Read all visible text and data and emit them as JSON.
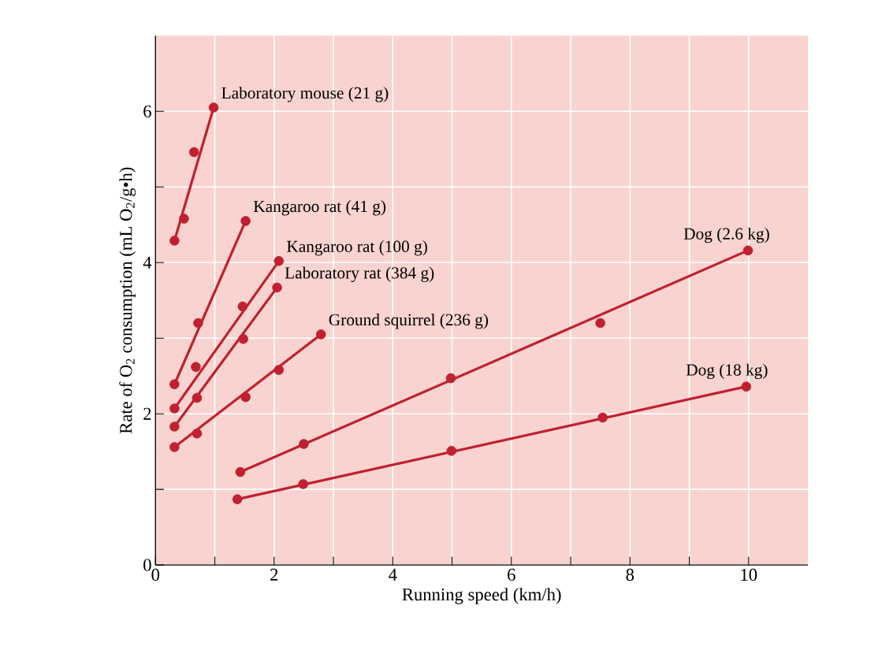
{
  "chart_data": {
    "type": "scatter",
    "xlabel": "Running speed (km/h)",
    "ylabel": "Rate of O$_{2}$ consumption (mL O$_{2}$/g•h)",
    "xlim": [
      0,
      11
    ],
    "ylim": [
      0,
      7
    ],
    "xticks": [
      0,
      {
        "value": 1,
        "label": null
      },
      2,
      {
        "value": 3,
        "label": null
      },
      4,
      {
        "value": 5,
        "label": null
      },
      6,
      {
        "value": 7,
        "label": null
      },
      8,
      {
        "value": 9,
        "label": null
      },
      10
    ],
    "yticks": [
      0,
      {
        "value": 1,
        "label": null
      },
      2,
      {
        "value": 3,
        "label": null
      },
      4,
      {
        "value": 5,
        "label": null
      },
      6
    ],
    "grid": true,
    "marker": "circle",
    "series": [
      {
        "name": "Laboratory mouse (21 g)",
        "color": "#c0202f",
        "x": [
          0.32,
          0.48,
          0.65,
          0.98
        ],
        "values": [
          4.29,
          4.58,
          5.46,
          6.05
        ]
      },
      {
        "type": "line",
        "color": "#c0202f",
        "line_style": "solid",
        "marker": "none",
        "x": [
          0.32,
          0.98
        ],
        "values": [
          4.29,
          6.05
        ]
      },
      {
        "name": "Kangaroo rat (41 g)",
        "color": "#c0202f",
        "x": [
          0.32,
          0.72,
          1.52
        ],
        "values": [
          2.39,
          3.2,
          4.55
        ]
      },
      {
        "type": "line",
        "color": "#c0202f",
        "line_style": "solid",
        "marker": "none",
        "x": [
          0.32,
          1.52
        ],
        "values": [
          2.39,
          4.55
        ]
      },
      {
        "name": "Kangaroo rat (100 g)",
        "color": "#c0202f",
        "x": [
          0.32,
          0.68,
          1.47,
          2.08
        ],
        "values": [
          2.07,
          2.62,
          3.42,
          4.02
        ]
      },
      {
        "type": "line",
        "color": "#c0202f",
        "line_style": "solid",
        "marker": "none",
        "x": [
          0.32,
          2.08
        ],
        "values": [
          2.07,
          4.02
        ]
      },
      {
        "name": "Laboratory rat (384 g)",
        "color": "#c0202f",
        "x": [
          0.32,
          0.7,
          1.48,
          2.05
        ],
        "values": [
          1.83,
          2.21,
          2.99,
          3.67
        ]
      },
      {
        "type": "line",
        "color": "#c0202f",
        "line_style": "solid",
        "marker": "none",
        "x": [
          0.32,
          2.05
        ],
        "values": [
          1.83,
          3.67
        ]
      },
      {
        "name": "Ground squirrel (236 g)",
        "color": "#c0202f",
        "x": [
          0.32,
          0.7,
          1.52,
          2.08,
          2.79
        ],
        "values": [
          1.56,
          1.74,
          2.22,
          2.58,
          3.05
        ]
      },
      {
        "type": "line",
        "color": "#c0202f",
        "line_style": "solid",
        "marker": "none",
        "x": [
          0.32,
          2.79
        ],
        "values": [
          1.56,
          3.05
        ]
      },
      {
        "name": "Dog (2.6 kg)",
        "color": "#c0202f",
        "x": [
          1.43,
          2.5,
          4.98,
          7.5,
          9.99
        ],
        "values": [
          1.23,
          1.6,
          2.47,
          3.2,
          4.16
        ]
      },
      {
        "type": "line",
        "color": "#c0202f",
        "line_style": "solid",
        "marker": "none",
        "x": [
          1.43,
          9.99
        ],
        "values": [
          1.23,
          4.16
        ]
      },
      {
        "name": "Dog (18 kg)",
        "color": "#c0202f",
        "x": [
          1.38,
          2.49,
          4.99,
          7.54,
          9.96
        ],
        "values": [
          0.87,
          1.07,
          1.51,
          1.95,
          2.36
        ]
      },
      {
        "type": "line",
        "color": "#c0202f",
        "line_style": "solid",
        "marker": "none",
        "x": [
          1.38,
          9.96
        ],
        "values": [
          0.87,
          2.36
        ]
      }
    ]
  }
}
